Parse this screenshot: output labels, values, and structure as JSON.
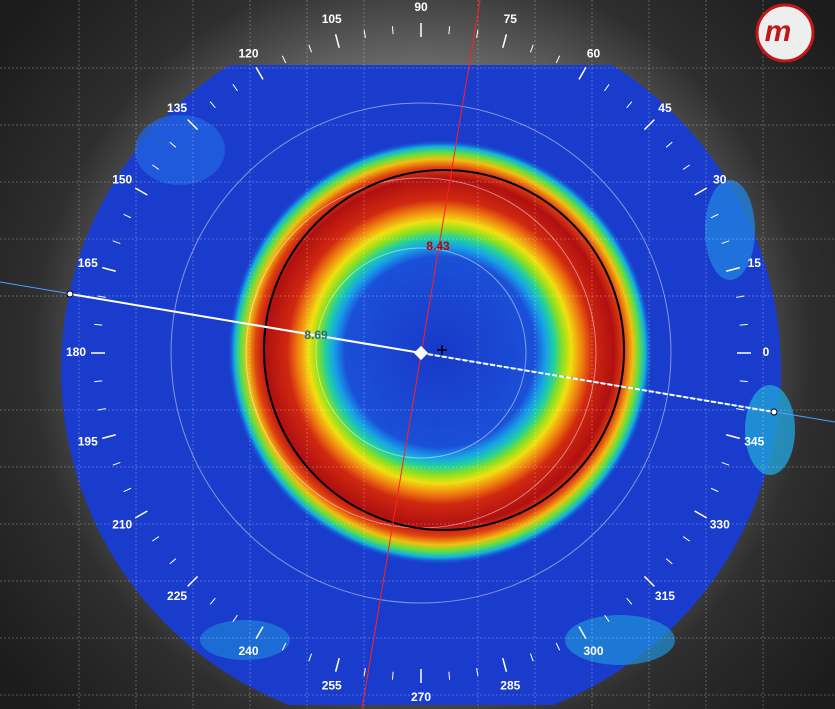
{
  "angle_labels": [
    0,
    15,
    30,
    45,
    60,
    75,
    90,
    105,
    120,
    135,
    150,
    165,
    180,
    195,
    210,
    225,
    240,
    255,
    270,
    285,
    300,
    315,
    330,
    345
  ],
  "point_labels": [
    "8.43",
    "8.69"
  ],
  "logo": "m"
}
